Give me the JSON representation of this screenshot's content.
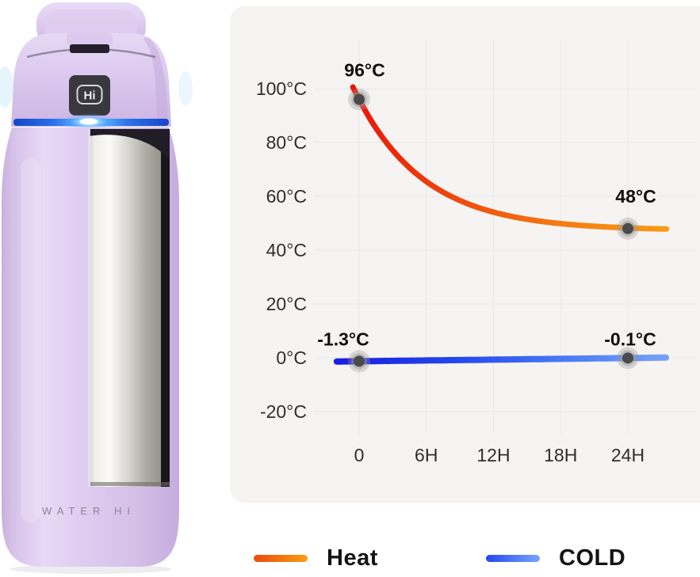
{
  "product": {
    "brand_text": "WATER HI",
    "screen_label": "Hi",
    "body_color": "#d8c3ec",
    "steel_color": "#d8d7d2",
    "led_color": "#2f7bf0"
  },
  "chart_data": {
    "type": "line",
    "title": "",
    "x_unit": "hours",
    "x_ticks": [
      {
        "t": 0,
        "label": "0"
      },
      {
        "t": 6,
        "label": "6H"
      },
      {
        "t": 12,
        "label": "12H"
      },
      {
        "t": 18,
        "label": "18H"
      },
      {
        "t": 24,
        "label": "24H"
      }
    ],
    "y_ticks": [
      {
        "temp": 100,
        "label": "100°C"
      },
      {
        "temp": 80,
        "label": "80°C"
      },
      {
        "temp": 60,
        "label": "60°C"
      },
      {
        "temp": 40,
        "label": "40°C"
      },
      {
        "temp": 20,
        "label": "20°C"
      },
      {
        "temp": 0,
        "label": "0°C"
      },
      {
        "temp": -20,
        "label": "-20°C"
      }
    ],
    "ylim": [
      -30,
      110
    ],
    "grid": true,
    "grid_color": "#e9e9e5",
    "panel_bg": "#f5f4f2",
    "legend_position": "bottom",
    "point_marker": {
      "dot_color": "#4a4a4a",
      "halo_color": "#999999"
    },
    "series": [
      {
        "name": "Heat",
        "x": [
          0,
          24
        ],
        "values": [
          96,
          48
        ],
        "point_labels": [
          "96°C",
          "48°C"
        ],
        "gradient": [
          "#e8120a",
          "#ee4a0d",
          "#f47d12",
          "#f89d15"
        ]
      },
      {
        "name": "COLD",
        "x": [
          0,
          24
        ],
        "values": [
          -1.3,
          -0.1
        ],
        "point_labels": [
          "-1.3°C",
          "-0.1°C"
        ],
        "gradient": [
          "#1b1fe0",
          "#2447ee",
          "#4a79f5",
          "#77a5f8"
        ]
      }
    ]
  }
}
